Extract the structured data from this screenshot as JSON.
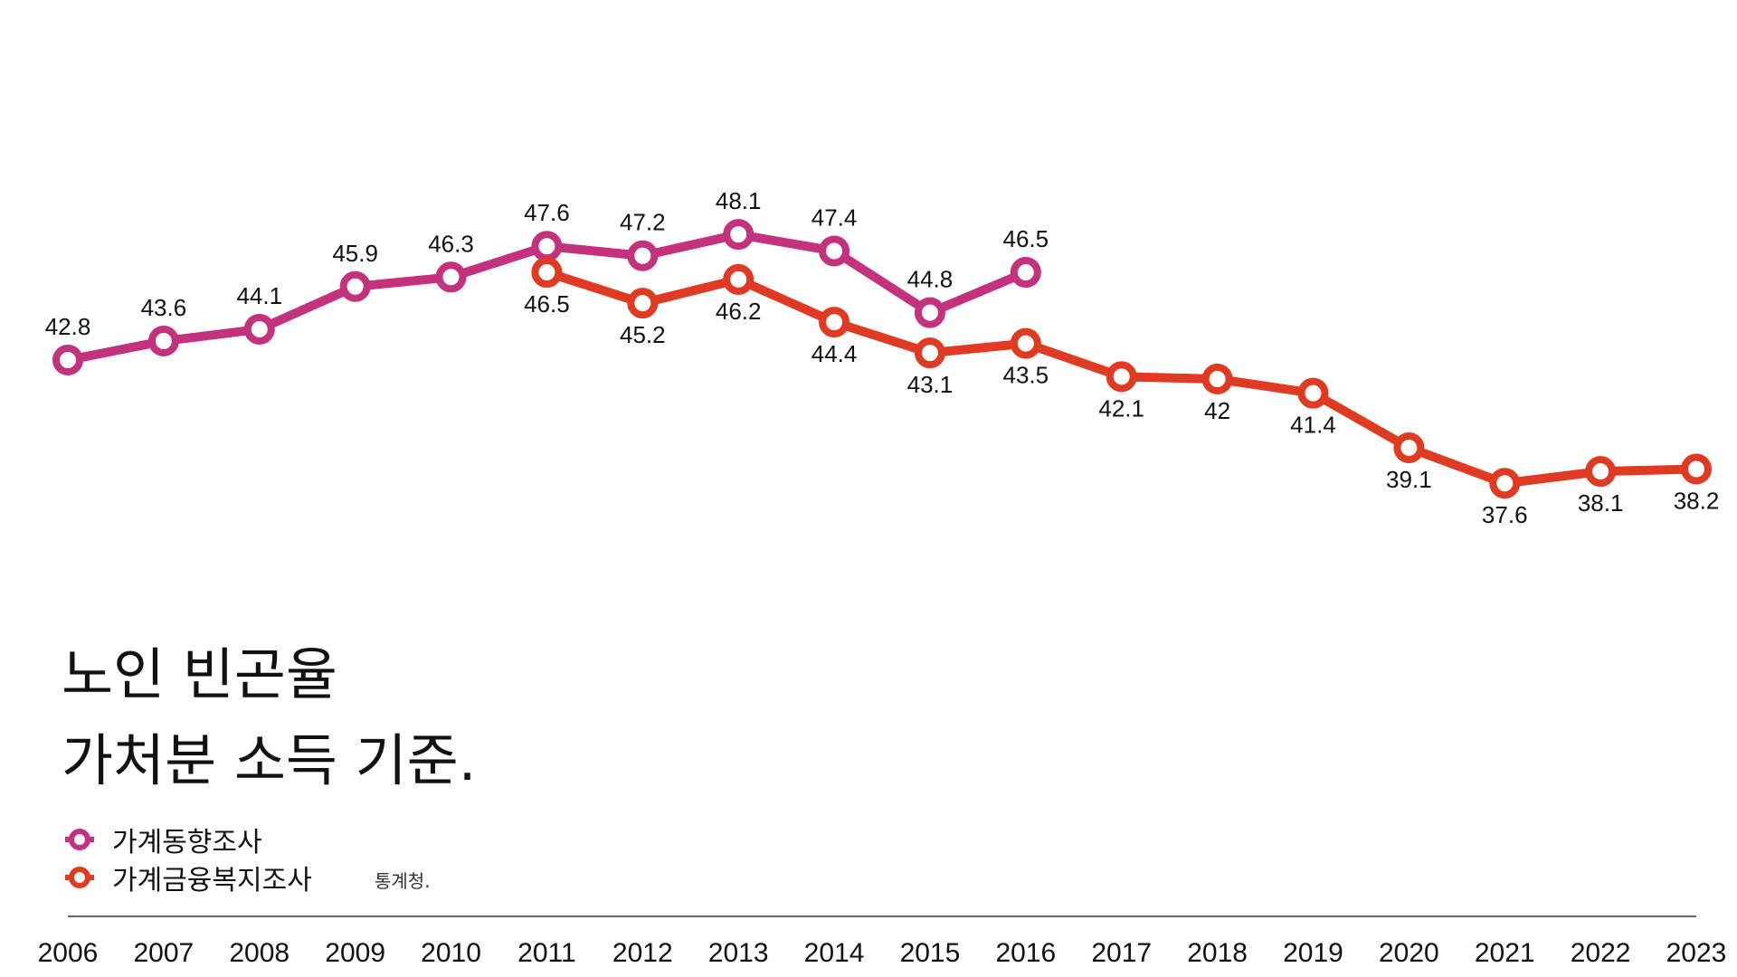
{
  "chart_data": {
    "type": "line",
    "title": "노인 빈곤율",
    "subtitle": "가처분 소득 기준.",
    "source": "통계청.",
    "x": [
      "2006",
      "2007",
      "2008",
      "2009",
      "2010",
      "2011",
      "2012",
      "2013",
      "2014",
      "2015",
      "2016",
      "2017",
      "2018",
      "2019",
      "2020",
      "2021",
      "2022",
      "2023"
    ],
    "series": [
      {
        "name": "가계동향조사",
        "color": "#c4327e",
        "values": [
          42.8,
          43.6,
          44.1,
          45.9,
          46.3,
          47.6,
          47.2,
          48.1,
          47.4,
          44.8,
          46.5,
          null,
          null,
          null,
          null,
          null,
          null,
          null
        ],
        "labels": [
          "42.8",
          "43.6",
          "44.1",
          "45.9",
          "46.3",
          "47.6",
          "47.2",
          "48.1",
          "47.4",
          "44.8",
          "46.5",
          null,
          null,
          null,
          null,
          null,
          null,
          null
        ],
        "label_position": "above"
      },
      {
        "name": "가계금융복지조사",
        "color": "#e03a22",
        "values": [
          null,
          null,
          null,
          null,
          null,
          46.5,
          45.2,
          46.2,
          44.4,
          43.1,
          43.5,
          42.1,
          42.0,
          41.4,
          39.1,
          37.6,
          38.1,
          38.2
        ],
        "labels": [
          null,
          null,
          null,
          null,
          null,
          "46.5",
          "45.2",
          "46.2",
          "44.4",
          "43.1",
          "43.5",
          "42.1",
          "42",
          "41.4",
          "39.1",
          "37.6",
          "38.1",
          "38.2"
        ],
        "label_position": "below"
      }
    ],
    "ylim": [
      30,
      55
    ],
    "grid": false,
    "legend_position": "bottom-left"
  }
}
